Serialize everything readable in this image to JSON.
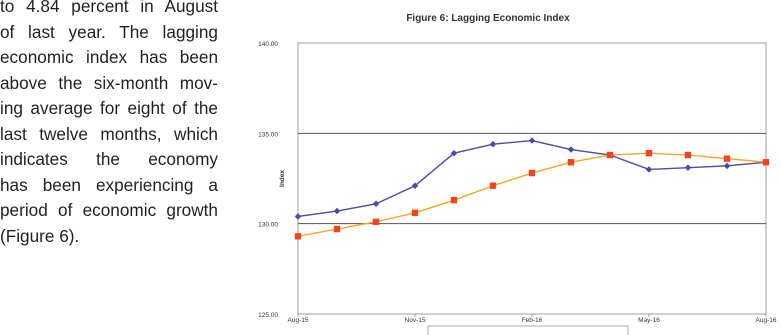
{
  "paragraph": {
    "lines": [
      "to 4.84 percent in August",
      "of last year. The lagging",
      "economic index has been",
      "above the six-month mov-",
      "ing average for eight of the",
      "last twelve months, which",
      "indicates the economy",
      "has been experiencing a",
      "period of economic growth",
      "(Figure 6)."
    ]
  },
  "chart_data": {
    "type": "line",
    "title": "Figure 6: Lagging Economic Index",
    "xlabel": "",
    "ylabel": "Index",
    "ylim": [
      125,
      140
    ],
    "yticks": [
      "125.00",
      "130.00",
      "135.00",
      "140.00"
    ],
    "xticks": [
      "Aug-15",
      "Nov-15",
      "Feb-16",
      "May-16",
      "Aug-16"
    ],
    "x": [
      "Aug-15",
      "Sep-15",
      "Oct-15",
      "Nov-15",
      "Dec-15",
      "Jan-16",
      "Feb-16",
      "Mar-16",
      "Apr-16",
      "May-16",
      "Jun-16",
      "Jul-16",
      "Aug-16"
    ],
    "grid": "horizontal",
    "series": [
      {
        "color": "#4a4aa8",
        "marker": "diamond",
        "values": [
          130.4,
          130.7,
          131.1,
          132.1,
          133.9,
          134.4,
          134.6,
          134.1,
          133.8,
          133.0,
          133.1,
          133.2,
          133.4
        ]
      },
      {
        "color": "#ee4422",
        "line_color": "#f5a623",
        "marker": "square",
        "values": [
          129.3,
          129.7,
          130.1,
          130.6,
          131.3,
          132.1,
          132.8,
          133.4,
          133.8,
          133.9,
          133.8,
          133.6,
          133.4
        ]
      }
    ]
  }
}
